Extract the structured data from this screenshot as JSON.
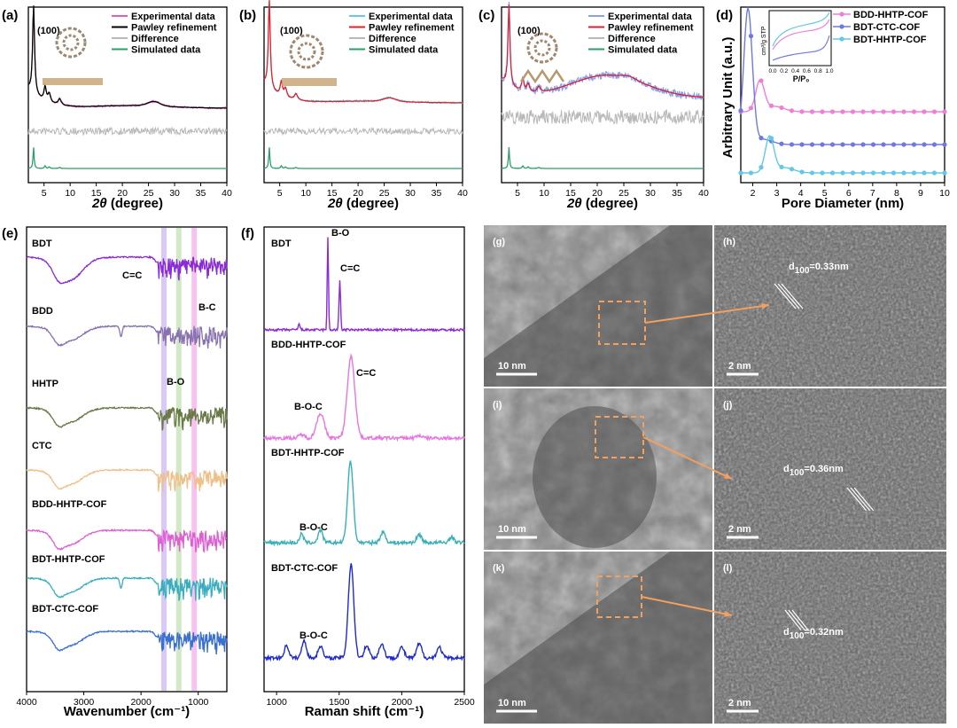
{
  "chart_data": [
    {
      "id": "a",
      "type": "line",
      "label": "(a)",
      "xlabel": "2θ (degree)",
      "xlim": [
        2,
        40
      ],
      "xticks": [
        5,
        10,
        15,
        20,
        25,
        30,
        35,
        40
      ],
      "peak_label": "(100)",
      "legend": [
        "Experimental data",
        "Pawley refinement",
        "Difference",
        "Simulated data"
      ],
      "legend_colors": [
        "#e060b8",
        "#000000",
        "#b8b8b8",
        "#2e9e6a"
      ],
      "peaks_2theta": [
        3.0,
        5.2,
        6.0,
        8.0,
        26.0
      ]
    },
    {
      "id": "b",
      "type": "line",
      "label": "(b)",
      "xlabel": "2θ (degree)",
      "xlim": [
        2,
        40
      ],
      "xticks": [
        5,
        10,
        15,
        20,
        25,
        30,
        35,
        40
      ],
      "peak_label": "(100)",
      "legend": [
        "Experimental data",
        "Pawley refinement",
        "Difference",
        "Simulated data"
      ],
      "legend_colors": [
        "#6cc8e8",
        "#e0202a",
        "#b8b8b8",
        "#2e9e6a"
      ],
      "peaks_2theta": [
        3.0,
        5.3,
        6.1,
        8.1,
        26.0
      ]
    },
    {
      "id": "c",
      "type": "line",
      "label": "(c)",
      "xlabel": "2θ (degree)",
      "xlim": [
        2,
        40
      ],
      "xticks": [
        5,
        10,
        15,
        20,
        25,
        30,
        35,
        40
      ],
      "peak_label": "(100)",
      "legend": [
        "Experimental data",
        "Pawley refinement",
        "Difference",
        "Simulated data"
      ],
      "legend_colors": [
        "#8aa0e8",
        "#d81f3c",
        "#b8b8b8",
        "#2e9e6a"
      ],
      "peaks_2theta": [
        3.4,
        6.0,
        7.0,
        9.0,
        26.0
      ]
    },
    {
      "id": "d",
      "type": "line",
      "label": "(d)",
      "xlabel": "Pore Diameter (nm)",
      "ylabel": "Arbitrary Unit (a.u.)",
      "xlim": [
        1.5,
        10
      ],
      "xticks": [
        2,
        3,
        4,
        5,
        6,
        7,
        8,
        9,
        10
      ],
      "series": [
        {
          "name": "BDD-HHTP-COF",
          "color": "#ef7fd6",
          "peak_nm": 2.3
        },
        {
          "name": "BDT-CTC-COF",
          "color": "#6f79dc",
          "peak_nm": 1.8
        },
        {
          "name": "BDT-HHTP-COF",
          "color": "#63c8e6",
          "peak_nm": 2.7
        }
      ],
      "inset": {
        "ylabel": "cm³/g STP",
        "xlabel": "P/P₀",
        "xticks": [
          "0.0",
          "0.2",
          "0.4",
          "0.6",
          "0.8",
          "1.0"
        ]
      }
    },
    {
      "id": "e",
      "type": "line",
      "label": "(e)",
      "xlabel": "Wavenumber (cm⁻¹)",
      "xlim": [
        4000,
        500
      ],
      "xticks": [
        4000,
        3000,
        2000,
        1000
      ],
      "series": [
        {
          "name": "BDT",
          "color": "#8a2ad8"
        },
        {
          "name": "BDD",
          "color": "#8872b0"
        },
        {
          "name": "HHTP",
          "color": "#697a48"
        },
        {
          "name": "CTC",
          "color": "#f0c08a"
        },
        {
          "name": "BDD-HHTP-COF",
          "color": "#e060d4"
        },
        {
          "name": "BDT-HHTP-COF",
          "color": "#3aaec0"
        },
        {
          "name": "BDT-CTC-COF",
          "color": "#3a70d0"
        }
      ],
      "bands": [
        {
          "label": "C=C",
          "wavenumber": 1600,
          "color": "#c8b4f0"
        },
        {
          "label": "B-O",
          "wavenumber": 1340,
          "color": "#bfe0b0"
        },
        {
          "label": "B-C",
          "wavenumber": 1070,
          "color": "#f2a8e8"
        }
      ]
    },
    {
      "id": "f",
      "type": "line",
      "label": "(f)",
      "xlabel": "Raman shift (cm⁻¹)",
      "xlim": [
        900,
        2500
      ],
      "xticks": [
        1000,
        1500,
        2000,
        2500
      ],
      "series": [
        {
          "name": "BDT",
          "color": "#8a2ad8",
          "annotations": [
            "B-O",
            "C=C"
          ]
        },
        {
          "name": "BDD-HHTP-COF",
          "color": "#e876e0",
          "annotations": [
            "B-O-C",
            "C=C"
          ]
        },
        {
          "name": "BDT-HHTP-COF",
          "color": "#38b0b8",
          "annotations": [
            "B-O-C"
          ]
        },
        {
          "name": "BDT-CTC-COF",
          "color": "#1e2ad0",
          "annotations": [
            "B-O-C"
          ]
        }
      ]
    }
  ],
  "tem": [
    {
      "label": "(g)",
      "scale": "10 nm"
    },
    {
      "label": "(h)",
      "scale": "2 nm",
      "d_prefix": "d",
      "d_sub": "100",
      "d_value": "=0.33nm"
    },
    {
      "label": "(i)",
      "scale": "10 nm"
    },
    {
      "label": "(j)",
      "scale": "2 nm",
      "d_prefix": "d",
      "d_sub": "100",
      "d_value": "=0.36nm"
    },
    {
      "label": "(k)",
      "scale": "10 nm"
    },
    {
      "label": "(l)",
      "scale": "2 nm",
      "d_prefix": "d",
      "d_sub": "100",
      "d_value": "=0.32nm"
    }
  ]
}
